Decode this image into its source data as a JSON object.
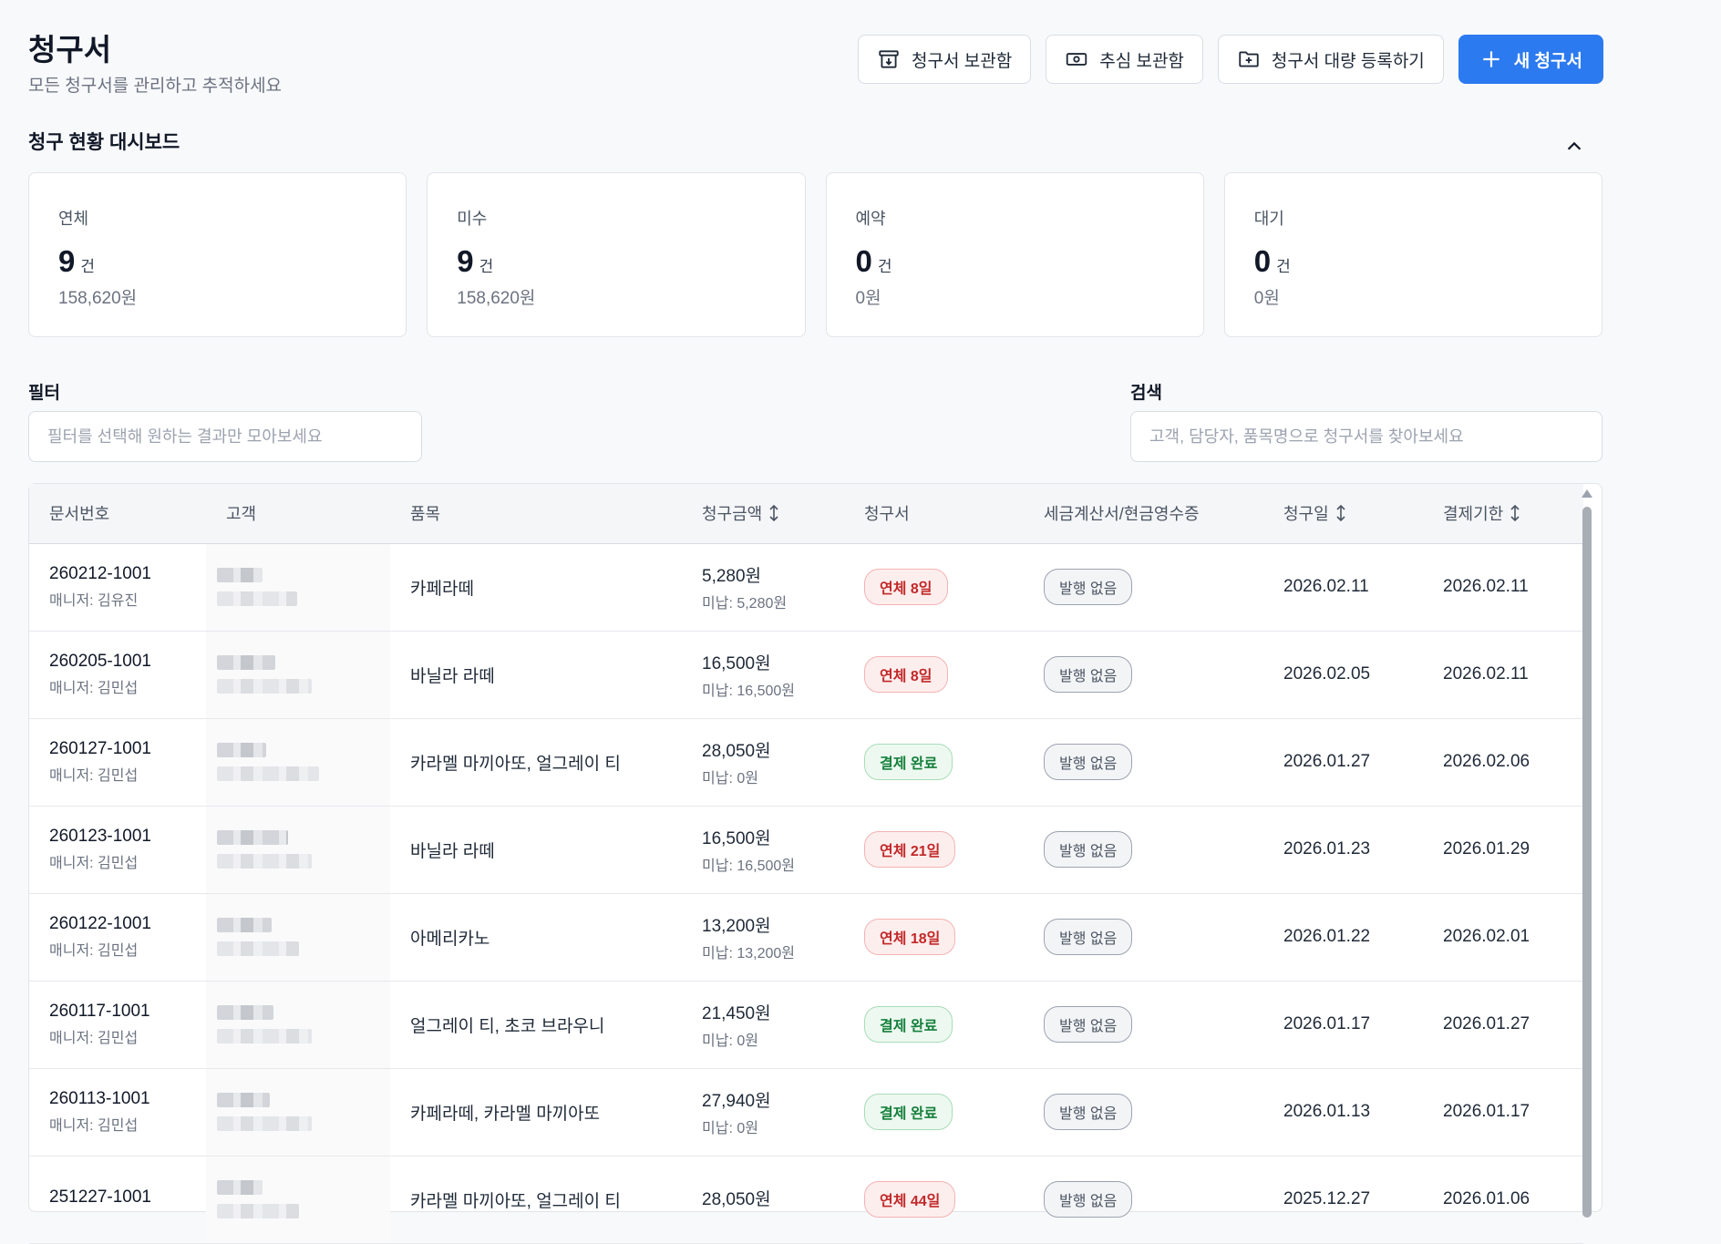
{
  "header": {
    "title": "청구서",
    "subtitle": "모든 청구서를 관리하고 추적하세요",
    "actions": {
      "archive": "청구서 보관함",
      "collection": "추심 보관함",
      "bulk": "청구서 대량 등록하기",
      "new": "새 청구서"
    }
  },
  "dashboard": {
    "title": "청구 현황 대시보드",
    "cards": [
      {
        "label": "연체",
        "count": "9",
        "unit": "건",
        "amount": "158,620원"
      },
      {
        "label": "미수",
        "count": "9",
        "unit": "건",
        "amount": "158,620원"
      },
      {
        "label": "예약",
        "count": "0",
        "unit": "건",
        "amount": "0원"
      },
      {
        "label": "대기",
        "count": "0",
        "unit": "건",
        "amount": "0원"
      }
    ]
  },
  "filter": {
    "label": "필터",
    "placeholder": "필터를 선택해 원하는 결과만 모아보세요"
  },
  "search": {
    "label": "검색",
    "placeholder": "고객, 담당자, 품목명으로 청구서를 찾아보세요"
  },
  "table": {
    "columns": {
      "doc": "문서번호",
      "customer": "고객",
      "item": "품목",
      "amount": "청구금액",
      "status": "청구서",
      "tax": "세금계산서/현금영수증",
      "date": "청구일",
      "due": "결제기한"
    },
    "rows": [
      {
        "doc": "260212-1001",
        "manager": "매니저: 김유진",
        "item": "카페라떼",
        "amount": "5,280원",
        "unpaid": "미납: 5,280원",
        "status": "연체 8일",
        "status_type": "overdue",
        "tax": "발행 없음",
        "date": "2026.02.11",
        "due": "2026.02.11"
      },
      {
        "doc": "260205-1001",
        "manager": "매니저: 김민섭",
        "item": "바닐라 라떼",
        "amount": "16,500원",
        "unpaid": "미납: 16,500원",
        "status": "연체 8일",
        "status_type": "overdue",
        "tax": "발행 없음",
        "date": "2026.02.05",
        "due": "2026.02.11"
      },
      {
        "doc": "260127-1001",
        "manager": "매니저: 김민섭",
        "item": "카라멜 마끼아또, 얼그레이 티",
        "amount": "28,050원",
        "unpaid": "미납: 0원",
        "status": "결제 완료",
        "status_type": "paid",
        "tax": "발행 없음",
        "date": "2026.01.27",
        "due": "2026.02.06"
      },
      {
        "doc": "260123-1001",
        "manager": "매니저: 김민섭",
        "item": "바닐라 라떼",
        "amount": "16,500원",
        "unpaid": "미납: 16,500원",
        "status": "연체 21일",
        "status_type": "overdue",
        "tax": "발행 없음",
        "date": "2026.01.23",
        "due": "2026.01.29"
      },
      {
        "doc": "260122-1001",
        "manager": "매니저: 김민섭",
        "item": "아메리카노",
        "amount": "13,200원",
        "unpaid": "미납: 13,200원",
        "status": "연체 18일",
        "status_type": "overdue",
        "tax": "발행 없음",
        "date": "2026.01.22",
        "due": "2026.02.01"
      },
      {
        "doc": "260117-1001",
        "manager": "매니저: 김민섭",
        "item": "얼그레이 티, 초코 브라우니",
        "amount": "21,450원",
        "unpaid": "미납: 0원",
        "status": "결제 완료",
        "status_type": "paid",
        "tax": "발행 없음",
        "date": "2026.01.17",
        "due": "2026.01.27"
      },
      {
        "doc": "260113-1001",
        "manager": "매니저: 김민섭",
        "item": "카페라떼, 카라멜 마끼아또",
        "amount": "27,940원",
        "unpaid": "미납: 0원",
        "status": "결제 완료",
        "status_type": "paid",
        "tax": "발행 없음",
        "date": "2026.01.13",
        "due": "2026.01.17"
      },
      {
        "doc": "251227-1001",
        "manager": "",
        "item": "카라멜 마끼아또, 얼그레이 티",
        "amount": "28,050원",
        "unpaid": "",
        "status": "연체 44일",
        "status_type": "overdue",
        "tax": "발행 없음",
        "date": "2025.12.27",
        "due": "2026.01.06"
      }
    ]
  }
}
